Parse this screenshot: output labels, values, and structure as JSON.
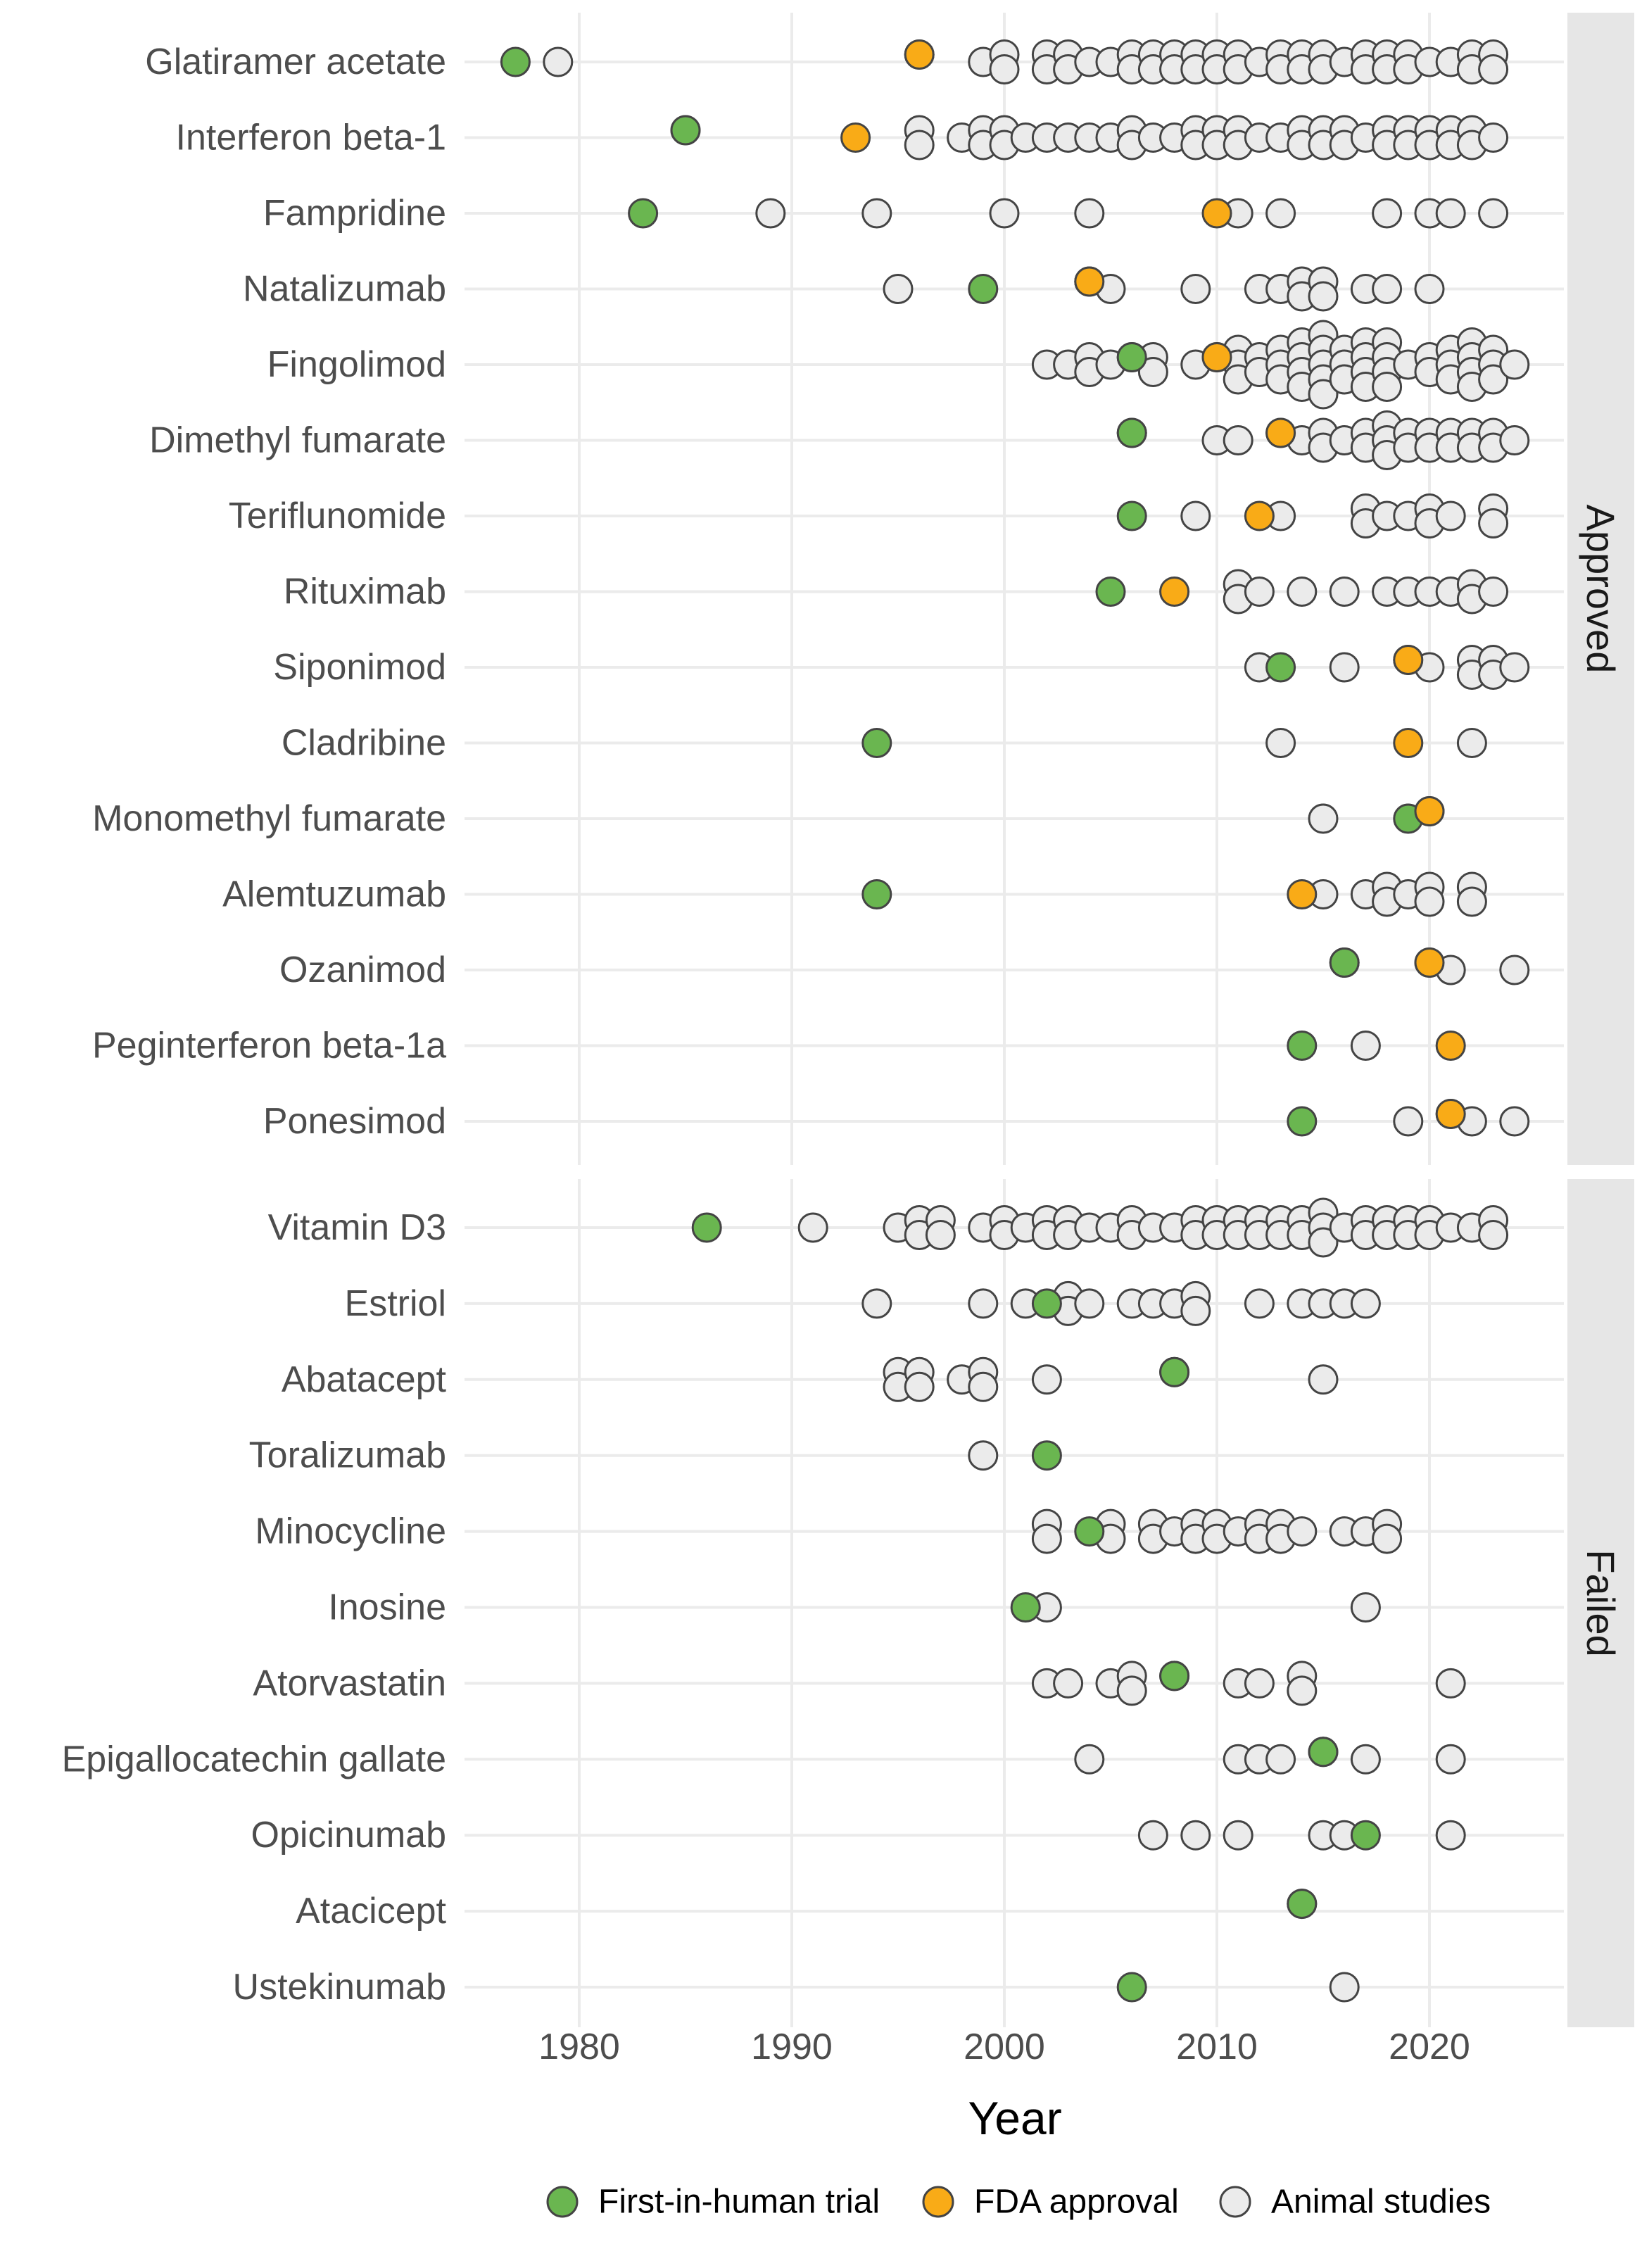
{
  "chart_data": {
    "type": "scatter",
    "title": "",
    "xlabel": "Year",
    "ylabel": "",
    "xlim": [
      1975,
      2025
    ],
    "xticks": [
      1980,
      1990,
      2000,
      2010,
      2020
    ],
    "grid": true,
    "legend_position": "bottom",
    "colors": {
      "first": "#6ab650",
      "fda": "#f9ab17",
      "animal": "#ebebeb"
    },
    "legend": [
      {
        "key": "first",
        "label": "First-in-human trial"
      },
      {
        "key": "fda",
        "label": "FDA approval"
      },
      {
        "key": "animal",
        "label": "Animal studies"
      }
    ],
    "panels": [
      {
        "label": "Approved",
        "drugs": [
          {
            "name": "Glatiramer acetate",
            "first": [
              1977
            ],
            "fda": [
              1996
            ],
            "animal": [
              1979,
              1996,
              1999,
              2000,
              2000,
              2002,
              2002,
              2003,
              2003,
              2004,
              2005,
              2006,
              2006,
              2007,
              2007,
              2008,
              2008,
              2009,
              2009,
              2010,
              2010,
              2011,
              2011,
              2012,
              2013,
              2013,
              2014,
              2014,
              2015,
              2015,
              2016,
              2017,
              2017,
              2018,
              2018,
              2019,
              2019,
              2020,
              2021,
              2022,
              2022,
              2023,
              2023
            ]
          },
          {
            "name": "Interferon beta-1",
            "first": [
              1985
            ],
            "fda": [
              1993
            ],
            "animal": [
              1985,
              1996,
              1996,
              1998,
              1999,
              1999,
              2000,
              2000,
              2001,
              2002,
              2003,
              2004,
              2005,
              2006,
              2006,
              2007,
              2008,
              2009,
              2009,
              2010,
              2010,
              2011,
              2011,
              2012,
              2013,
              2014,
              2014,
              2015,
              2015,
              2016,
              2016,
              2017,
              2018,
              2018,
              2019,
              2019,
              2020,
              2020,
              2021,
              2021,
              2022,
              2022,
              2023
            ]
          },
          {
            "name": "Fampridine",
            "first": [
              1983
            ],
            "fda": [
              2010
            ],
            "animal": [
              1989,
              1994,
              2000,
              2004,
              2011,
              2013,
              2018,
              2020,
              2021,
              2023
            ]
          },
          {
            "name": "Natalizumab",
            "first": [
              1999
            ],
            "fda": [
              2004
            ],
            "animal": [
              1995,
              2004,
              2005,
              2009,
              2012,
              2013,
              2014,
              2014,
              2015,
              2015,
              2017,
              2018,
              2020
            ]
          },
          {
            "name": "Fingolimod",
            "first": [
              2006
            ],
            "fda": [
              2010
            ],
            "animal": [
              2002,
              2003,
              2004,
              2004,
              2005,
              2006,
              2007,
              2007,
              2009,
              2010,
              2011,
              2011,
              2011,
              2012,
              2012,
              2013,
              2013,
              2013,
              2014,
              2014,
              2014,
              2014,
              2015,
              2015,
              2015,
              2015,
              2015,
              2016,
              2016,
              2016,
              2017,
              2017,
              2017,
              2017,
              2018,
              2018,
              2018,
              2018,
              2019,
              2020,
              2020,
              2021,
              2021,
              2021,
              2022,
              2022,
              2022,
              2022,
              2023,
              2023,
              2023,
              2024
            ]
          },
          {
            "name": "Dimethyl fumarate",
            "first": [
              2006
            ],
            "fda": [
              2013
            ],
            "animal": [
              2006,
              2010,
              2011,
              2013,
              2014,
              2015,
              2015,
              2016,
              2017,
              2017,
              2018,
              2018,
              2018,
              2019,
              2019,
              2020,
              2020,
              2021,
              2021,
              2022,
              2022,
              2023,
              2023,
              2024
            ]
          },
          {
            "name": "Teriflunomide",
            "first": [
              2006
            ],
            "fda": [
              2012
            ],
            "animal": [
              2009,
              2013,
              2017,
              2017,
              2018,
              2019,
              2020,
              2020,
              2021,
              2023,
              2023
            ]
          },
          {
            "name": "Rituximab",
            "first": [
              2005
            ],
            "fda": [
              2008
            ],
            "animal": [
              2011,
              2011,
              2012,
              2014,
              2016,
              2018,
              2019,
              2020,
              2021,
              2022,
              2022,
              2023
            ]
          },
          {
            "name": "Siponimod",
            "first": [
              2013
            ],
            "fda": [
              2019
            ],
            "animal": [
              2012,
              2016,
              2019,
              2020,
              2022,
              2022,
              2023,
              2023,
              2024
            ]
          },
          {
            "name": "Cladribine",
            "first": [
              1994
            ],
            "fda": [
              2019
            ],
            "animal": [
              2013,
              2022
            ]
          },
          {
            "name": "Monomethyl fumarate",
            "first": [
              2019
            ],
            "fda": [
              2020
            ],
            "animal": [
              2015,
              2020
            ]
          },
          {
            "name": "Alemtuzumab",
            "first": [
              1994
            ],
            "fda": [
              2014
            ],
            "animal": [
              2015,
              2017,
              2018,
              2018,
              2019,
              2020,
              2020,
              2022,
              2022
            ]
          },
          {
            "name": "Ozanimod",
            "first": [
              2016
            ],
            "fda": [
              2020
            ],
            "animal": [
              2016,
              2020,
              2021,
              2024
            ]
          },
          {
            "name": "Peginterferon beta-1a",
            "first": [
              2014
            ],
            "fda": [
              2021
            ],
            "animal": [
              2017
            ]
          },
          {
            "name": "Ponesimod",
            "first": [
              2014
            ],
            "fda": [
              2021
            ],
            "animal": [
              2019,
              2021,
              2022,
              2024
            ]
          }
        ]
      },
      {
        "label": "Failed",
        "drugs": [
          {
            "name": "Vitamin D3",
            "first": [
              1986
            ],
            "fda": [],
            "animal": [
              1991,
              1995,
              1996,
              1996,
              1997,
              1997,
              1999,
              2000,
              2000,
              2001,
              2002,
              2002,
              2003,
              2003,
              2004,
              2005,
              2006,
              2006,
              2007,
              2008,
              2009,
              2009,
              2010,
              2010,
              2011,
              2011,
              2012,
              2012,
              2013,
              2013,
              2014,
              2014,
              2015,
              2015,
              2015,
              2016,
              2017,
              2017,
              2018,
              2018,
              2019,
              2019,
              2020,
              2020,
              2021,
              2022,
              2023,
              2023
            ]
          },
          {
            "name": "Estriol",
            "first": [
              2002
            ],
            "fda": [],
            "animal": [
              1994,
              1999,
              2001,
              2003,
              2003,
              2004,
              2006,
              2007,
              2008,
              2009,
              2009,
              2012,
              2014,
              2015,
              2016,
              2017
            ]
          },
          {
            "name": "Abatacept",
            "first": [
              2008
            ],
            "fda": [],
            "animal": [
              1995,
              1995,
              1996,
              1996,
              1998,
              1999,
              1999,
              2002,
              2008,
              2015
            ]
          },
          {
            "name": "Toralizumab",
            "first": [
              2002
            ],
            "fda": [],
            "animal": [
              1999
            ]
          },
          {
            "name": "Minocycline",
            "first": [
              2004
            ],
            "fda": [],
            "animal": [
              2002,
              2002,
              2005,
              2005,
              2007,
              2007,
              2008,
              2009,
              2009,
              2010,
              2010,
              2011,
              2012,
              2012,
              2013,
              2013,
              2014,
              2016,
              2017,
              2018,
              2018
            ]
          },
          {
            "name": "Inosine",
            "first": [
              2001
            ],
            "fda": [],
            "animal": [
              2002,
              2017
            ]
          },
          {
            "name": "Atorvastatin",
            "first": [
              2008
            ],
            "fda": [],
            "animal": [
              2002,
              2003,
              2005,
              2006,
              2006,
              2008,
              2011,
              2012,
              2014,
              2014,
              2021
            ]
          },
          {
            "name": "Epigallocatechin gallate",
            "first": [
              2015
            ],
            "fda": [],
            "animal": [
              2004,
              2011,
              2012,
              2013,
              2015,
              2017,
              2021
            ]
          },
          {
            "name": "Opicinumab",
            "first": [
              2017
            ],
            "fda": [],
            "animal": [
              2007,
              2009,
              2011,
              2015,
              2016,
              2021
            ]
          },
          {
            "name": "Atacicept",
            "first": [
              2014
            ],
            "fda": [],
            "animal": [
              2014
            ]
          },
          {
            "name": "Ustekinumab",
            "first": [
              2006
            ],
            "fda": [],
            "animal": [
              2016
            ]
          }
        ]
      }
    ]
  }
}
